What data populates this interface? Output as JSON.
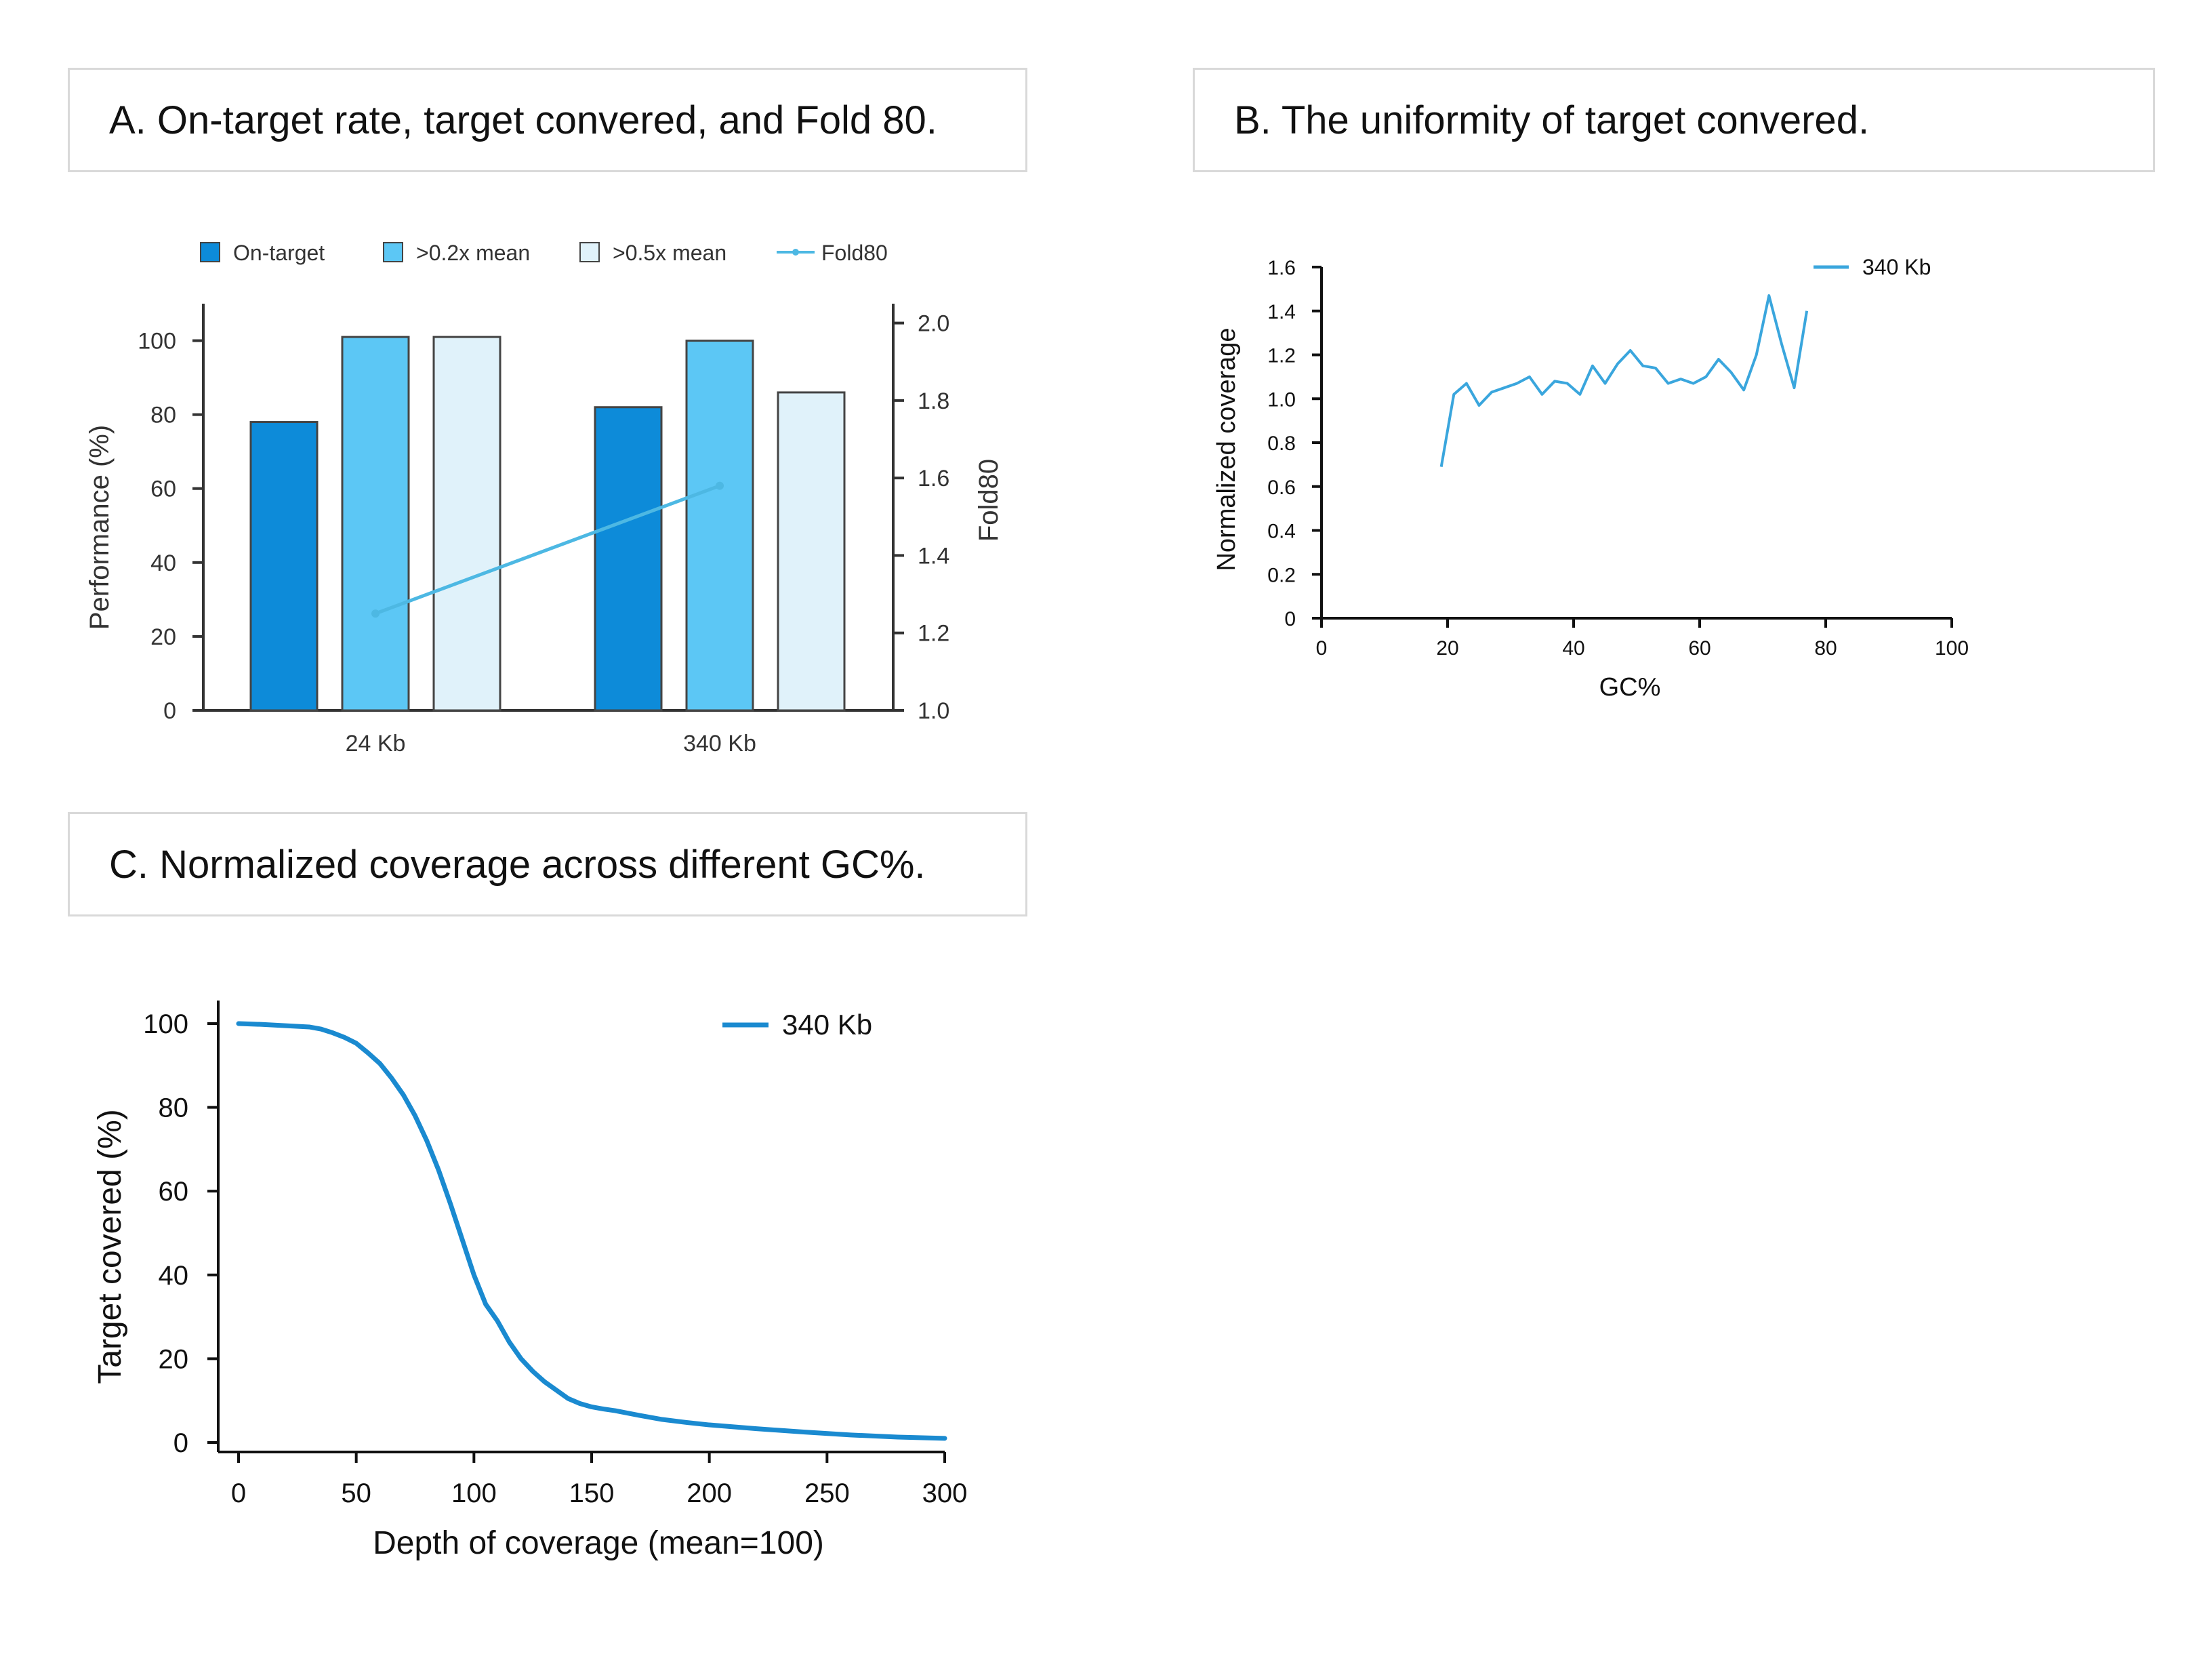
{
  "panels": {
    "a_title": "A. On-target rate, target convered, and Fold 80.",
    "b_title": "B. The uniformity of target convered.",
    "c_title": "C. Normalized coverage across different GC%."
  },
  "chart_data": [
    {
      "id": "A",
      "type": "bar",
      "categories": [
        "24 Kb",
        "340 Kb"
      ],
      "series": [
        {
          "name": "On-target",
          "values": [
            78,
            82
          ],
          "color": "#0d8bd9"
        },
        {
          "name": ">0.2x mean",
          "values": [
            101,
            100
          ],
          "color": "#5cc7f5"
        },
        {
          "name": ">0.5x mean",
          "values": [
            101,
            86
          ],
          "color": "#e0f2fa"
        }
      ],
      "line_series": {
        "name": "Fold80",
        "values": [
          1.25,
          1.58
        ],
        "axis": "right",
        "color": "#4db8e3"
      },
      "xlabel": "",
      "ylabel": "Performance (%)",
      "y2label": "Fold80",
      "ylim": [
        0,
        110
      ],
      "yticks": [
        0,
        20,
        40,
        60,
        80,
        100
      ],
      "y2lim": [
        1.0,
        2.05
      ],
      "y2ticks": [
        1.0,
        1.2,
        1.4,
        1.6,
        1.8,
        2.0
      ],
      "y2tick_labels": [
        "1.0",
        "1.2",
        "1.4",
        "1.6",
        "1.8",
        "2.0"
      ],
      "legend_position": "top"
    },
    {
      "id": "B",
      "type": "line",
      "series": [
        {
          "name": "340 Kb",
          "color": "#3aa6dd",
          "x": [
            19,
            21,
            23,
            25,
            27,
            29,
            31,
            33,
            35,
            37,
            39,
            41,
            43,
            45,
            47,
            49,
            51,
            53,
            55,
            57,
            59,
            61,
            63,
            65,
            67,
            69,
            71,
            73,
            75,
            77
          ],
          "y": [
            0.69,
            1.02,
            1.07,
            0.97,
            1.03,
            1.05,
            1.07,
            1.1,
            1.02,
            1.08,
            1.07,
            1.02,
            1.15,
            1.07,
            1.16,
            1.22,
            1.15,
            1.14,
            1.07,
            1.09,
            1.07,
            1.1,
            1.18,
            1.12,
            1.04,
            1.2,
            1.47,
            1.25,
            1.05,
            1.4
          ]
        }
      ],
      "xlabel": "GC%",
      "ylabel": "Normalized coverage",
      "xlim": [
        0,
        100
      ],
      "xticks": [
        0,
        20,
        40,
        60,
        80,
        100
      ],
      "ylim": [
        0,
        1.6
      ],
      "yticks": [
        0,
        0.2,
        0.4,
        0.6,
        0.8,
        1.0,
        1.2,
        1.4,
        1.6
      ],
      "ytick_labels": [
        "0",
        "0.2",
        "0.4",
        "0.6",
        "0.8",
        "1.0",
        "1.2",
        "1.4",
        "1.6"
      ],
      "legend_position": "top-right"
    },
    {
      "id": "C",
      "type": "line",
      "series": [
        {
          "name": "340 Kb",
          "color": "#1a8ad0",
          "x": [
            0,
            10,
            20,
            30,
            35,
            40,
            45,
            50,
            55,
            60,
            65,
            70,
            75,
            80,
            85,
            90,
            95,
            100,
            105,
            110,
            115,
            120,
            125,
            130,
            135,
            140,
            145,
            150,
            155,
            160,
            170,
            180,
            190,
            200,
            220,
            240,
            260,
            280,
            300
          ],
          "y": [
            100,
            99.8,
            99.5,
            99.2,
            98.7,
            97.8,
            96.7,
            95.3,
            93,
            90.5,
            87,
            83,
            78,
            72,
            65,
            57,
            48.5,
            40,
            33,
            29,
            24,
            20,
            17,
            14.5,
            12.5,
            10.5,
            9.3,
            8.5,
            8,
            7.6,
            6.5,
            5.5,
            4.8,
            4.2,
            3.3,
            2.5,
            1.8,
            1.3,
            1.0
          ]
        }
      ],
      "xlabel": "Depth of coverage (mean=100)",
      "ylabel": "Target covered (%)",
      "xlim": [
        0,
        300
      ],
      "xticks": [
        0,
        50,
        100,
        150,
        200,
        250,
        300
      ],
      "ylim": [
        0,
        105
      ],
      "yticks": [
        0,
        20,
        40,
        60,
        80,
        100
      ],
      "legend_position": "top-right"
    }
  ]
}
